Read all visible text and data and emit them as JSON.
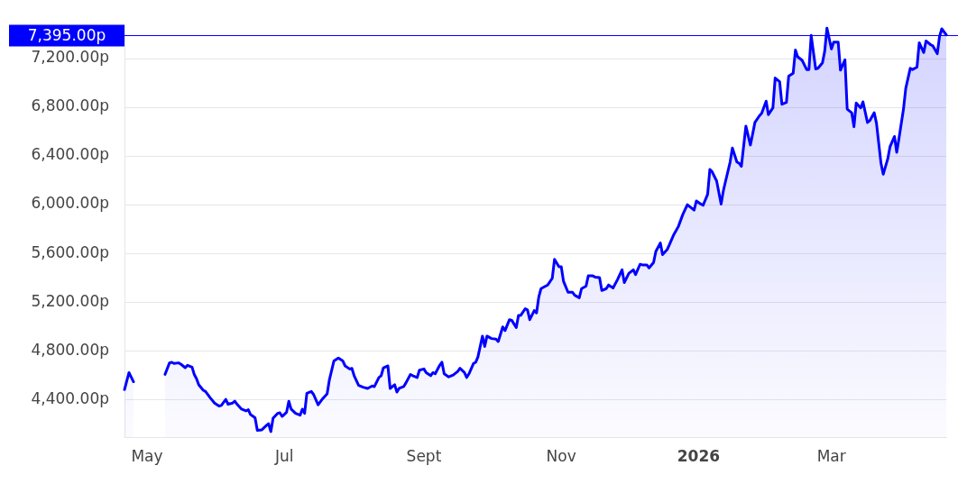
{
  "chart_data": {
    "type": "area",
    "x": [
      "2025-04-21",
      "2025-04-23",
      "2025-04-25",
      "2025-05-02",
      "2025-05-09",
      "2025-05-11",
      "2025-05-12",
      "2025-05-13",
      "2025-05-15",
      "2025-05-16",
      "2025-05-18",
      "2025-05-19",
      "2025-05-21",
      "2025-05-22",
      "2025-05-23",
      "2025-05-24",
      "2025-05-26",
      "2025-05-27",
      "2025-05-29",
      "2025-05-31",
      "2025-06-02",
      "2025-06-03",
      "2025-06-05",
      "2025-06-06",
      "2025-06-08",
      "2025-06-09",
      "2025-06-10",
      "2025-06-12",
      "2025-06-14",
      "2025-06-15",
      "2025-06-16",
      "2025-06-18",
      "2025-06-19",
      "2025-06-21",
      "2025-06-23",
      "2025-06-24",
      "2025-06-25",
      "2025-06-26",
      "2025-06-28",
      "2025-06-29",
      "2025-06-30",
      "2025-07-02",
      "2025-07-03",
      "2025-07-04",
      "2025-07-06",
      "2025-07-08",
      "2025-07-09",
      "2025-07-10",
      "2025-07-11",
      "2025-07-13",
      "2025-07-14",
      "2025-07-16",
      "2025-07-18",
      "2025-07-20",
      "2025-07-21",
      "2025-07-23",
      "2025-07-25",
      "2025-07-27",
      "2025-07-28",
      "2025-07-30",
      "2025-07-31",
      "2025-08-01",
      "2025-08-03",
      "2025-08-05",
      "2025-08-07",
      "2025-08-09",
      "2025-08-10",
      "2025-08-12",
      "2025-08-13",
      "2025-08-14",
      "2025-08-16",
      "2025-08-17",
      "2025-08-19",
      "2025-08-20",
      "2025-08-21",
      "2025-08-23",
      "2025-08-24",
      "2025-08-26",
      "2025-08-27",
      "2025-08-29",
      "2025-08-30",
      "2025-09-01",
      "2025-09-02",
      "2025-09-04",
      "2025-09-05",
      "2025-09-06",
      "2025-09-08",
      "2025-09-09",
      "2025-09-10",
      "2025-09-12",
      "2025-09-14",
      "2025-09-16",
      "2025-09-17",
      "2025-09-19",
      "2025-09-20",
      "2025-09-21",
      "2025-09-23",
      "2025-09-24",
      "2025-09-25",
      "2025-09-27",
      "2025-09-28",
      "2025-09-29",
      "2025-10-01",
      "2025-10-03",
      "2025-10-04",
      "2025-10-06",
      "2025-10-07",
      "2025-10-09",
      "2025-10-10",
      "2025-10-12",
      "2025-10-13",
      "2025-10-14",
      "2025-10-16",
      "2025-10-17",
      "2025-10-18",
      "2025-10-20",
      "2025-10-21",
      "2025-10-22",
      "2025-10-23",
      "2025-10-25",
      "2025-10-26",
      "2025-10-28",
      "2025-10-29",
      "2025-10-31",
      "2025-11-01",
      "2025-11-02",
      "2025-11-04",
      "2025-11-06",
      "2025-11-07",
      "2025-11-09",
      "2025-11-10",
      "2025-11-12",
      "2025-11-13",
      "2025-11-15",
      "2025-11-16",
      "2025-11-18",
      "2025-11-19",
      "2025-11-21",
      "2025-11-22",
      "2025-11-24",
      "2025-11-26",
      "2025-11-28",
      "2025-11-29",
      "2025-12-01",
      "2025-12-03",
      "2025-12-04",
      "2025-12-06",
      "2025-12-07",
      "2025-12-09",
      "2025-12-10",
      "2025-12-12",
      "2025-12-13",
      "2025-12-15",
      "2025-12-16",
      "2025-12-18",
      "2025-12-19",
      "2025-12-21",
      "2025-12-23",
      "2025-12-25",
      "2025-12-27",
      "2025-12-28",
      "2025-12-30",
      "2025-12-31",
      "2026-01-02",
      "2026-01-03",
      "2026-01-05",
      "2026-01-06",
      "2026-01-07",
      "2026-01-09",
      "2026-01-11",
      "2026-01-12",
      "2026-01-13",
      "2026-01-15",
      "2026-01-16",
      "2026-01-18",
      "2026-01-19",
      "2026-01-20",
      "2026-01-22",
      "2026-01-24",
      "2026-01-25",
      "2026-01-26",
      "2026-01-28",
      "2026-01-29",
      "2026-01-31",
      "2026-02-01",
      "2026-02-03",
      "2026-02-04",
      "2026-02-06",
      "2026-02-07",
      "2026-02-09",
      "2026-02-10",
      "2026-02-12",
      "2026-02-13",
      "2026-02-14",
      "2026-02-16",
      "2026-02-18",
      "2026-02-19",
      "2026-02-20",
      "2026-02-22",
      "2026-02-23",
      "2026-02-25",
      "2026-02-26",
      "2026-02-27",
      "2026-03-01",
      "2026-03-02",
      "2026-03-04",
      "2026-03-05",
      "2026-03-07",
      "2026-03-08",
      "2026-03-10",
      "2026-03-11",
      "2026-03-12",
      "2026-03-14",
      "2026-03-15",
      "2026-03-17",
      "2026-03-18",
      "2026-03-20",
      "2026-03-21",
      "2026-03-23",
      "2026-03-24",
      "2026-03-26",
      "2026-03-27",
      "2026-03-29",
      "2026-03-30",
      "2026-03-31",
      "2026-04-02",
      "2026-04-03",
      "2026-04-05",
      "2026-04-06",
      "2026-04-08",
      "2026-04-09",
      "2026-04-11",
      "2026-04-12",
      "2026-04-14",
      "2026-04-15",
      "2026-04-17",
      "2026-04-18",
      "2026-04-19",
      "2026-04-21"
    ],
    "values": [
      4480,
      4620,
      4545,
      null,
      4605,
      4700,
      4705,
      4695,
      4700,
      4690,
      4660,
      4680,
      4665,
      4605,
      4570,
      4520,
      4475,
      4465,
      4415,
      4370,
      4345,
      4350,
      4400,
      4360,
      4370,
      4385,
      4360,
      4320,
      4305,
      4315,
      4275,
      4250,
      4145,
      4150,
      4185,
      4200,
      4135,
      4245,
      4285,
      4290,
      4260,
      4295,
      4385,
      4320,
      4285,
      4270,
      4320,
      4285,
      4450,
      4465,
      4440,
      4355,
      4405,
      4445,
      4560,
      4715,
      4740,
      4715,
      4675,
      4650,
      4655,
      4595,
      4515,
      4500,
      4490,
      4510,
      4505,
      4580,
      4595,
      4660,
      4675,
      4490,
      4520,
      4460,
      4490,
      4505,
      4535,
      4605,
      4595,
      4580,
      4640,
      4650,
      4620,
      4595,
      4620,
      4610,
      4680,
      4705,
      4610,
      4585,
      4600,
      4630,
      4655,
      4620,
      4580,
      4610,
      4695,
      4705,
      4750,
      4920,
      4835,
      4920,
      4900,
      4895,
      4875,
      4995,
      4965,
      5055,
      5050,
      4990,
      5090,
      5090,
      5145,
      5135,
      5055,
      5130,
      5110,
      5240,
      5310,
      5330,
      5340,
      5395,
      5550,
      5490,
      5490,
      5370,
      5280,
      5280,
      5255,
      5235,
      5310,
      5330,
      5415,
      5415,
      5405,
      5400,
      5295,
      5310,
      5340,
      5315,
      5385,
      5465,
      5360,
      5435,
      5465,
      5425,
      5510,
      5505,
      5505,
      5480,
      5525,
      5615,
      5685,
      5590,
      5630,
      5670,
      5755,
      5820,
      5920,
      6000,
      5985,
      5955,
      6030,
      6005,
      5995,
      6085,
      6290,
      6270,
      6195,
      6005,
      6115,
      6195,
      6350,
      6465,
      6350,
      6340,
      6315,
      6645,
      6490,
      6580,
      6675,
      6730,
      6750,
      6850,
      6740,
      6795,
      7040,
      7010,
      6825,
      6840,
      7055,
      7080,
      7270,
      7215,
      7185,
      7110,
      7110,
      7390,
      7115,
      7120,
      7165,
      7260,
      7450,
      7280,
      7335,
      7335,
      7105,
      7190,
      6785,
      6755,
      6640,
      6835,
      6795,
      6845,
      6675,
      6690,
      6755,
      6670,
      6340,
      6250,
      6375,
      6475,
      6560,
      6430,
      6545,
      6785,
      6955,
      7120,
      7110,
      7130,
      7330,
      7250,
      7345,
      7315,
      7305,
      7240,
      7380,
      7445,
      7395
    ],
    "color": "#0000ff",
    "xlim": [
      "2025-04-21",
      "2026-04-21"
    ],
    "xticks": [
      {
        "value": "2025-05-01",
        "label": "May"
      },
      {
        "value": "2025-07-01",
        "label": "Jul"
      },
      {
        "value": "2025-09-01",
        "label": "Sept"
      },
      {
        "value": "2025-11-01",
        "label": "Nov"
      },
      {
        "value": "2026-01-01",
        "label": "2026"
      },
      {
        "value": "2026-03-01",
        "label": "Mar"
      }
    ],
    "ylim": [
      4090,
      7480
    ],
    "yticks": [
      {
        "value": 4400,
        "label": "4,400.00p"
      },
      {
        "value": 4800,
        "label": "4,800.00p"
      },
      {
        "value": 5200,
        "label": "5,200.00p"
      },
      {
        "value": 5600,
        "label": "5,600.00p"
      },
      {
        "value": 6000,
        "label": "6,000.00p"
      },
      {
        "value": 6400,
        "label": "6,400.00p"
      },
      {
        "value": 6800,
        "label": "6,800.00p"
      },
      {
        "value": 7200,
        "label": "7,200.00p"
      }
    ],
    "grid": "y",
    "ref_lines": [
      {
        "axis": "y",
        "value": 7395,
        "label": "7,395.00p",
        "color": "#0000ff"
      }
    ]
  }
}
